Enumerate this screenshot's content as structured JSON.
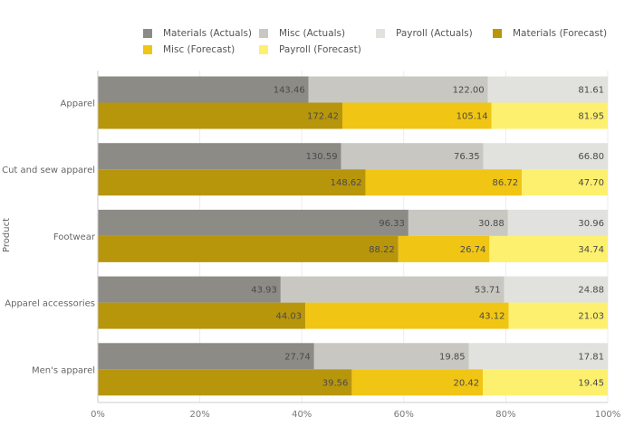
{
  "chart_data": {
    "type": "bar",
    "orientation": "horizontal",
    "stacking": "100%",
    "title": "",
    "xlabel": "",
    "ylabel": "Product",
    "xlim": [
      0,
      100
    ],
    "x_ticks": [
      "0%",
      "20%",
      "40%",
      "60%",
      "80%",
      "100%"
    ],
    "categories": [
      "Apparel",
      "Cut and sew apparel",
      "Footwear",
      "Apparel accessories",
      "Men's apparel"
    ],
    "legend_position": "top",
    "groups": [
      {
        "name": "Actuals",
        "series": [
          {
            "name": "Materials (Actuals)",
            "color": "#8c8b86",
            "values": [
              143.46,
              130.59,
              96.33,
              43.93,
              27.74
            ],
            "labels": [
              "143.46",
              "130.59",
              "96.33",
              "43.93",
              "27.74"
            ]
          },
          {
            "name": "Misc (Actuals)",
            "color": "#c8c7c1",
            "values": [
              122.0,
              76.35,
              30.88,
              53.71,
              19.85
            ],
            "labels": [
              "122.00",
              "76.35",
              "30.88",
              "53.71",
              "19.85"
            ]
          },
          {
            "name": "Payroll (Actuals)",
            "color": "#e1e1dd",
            "values": [
              81.61,
              66.8,
              30.96,
              24.88,
              17.81
            ],
            "labels": [
              "81.61",
              "66.80",
              "30.96",
              "24.88",
              "17.81"
            ]
          }
        ]
      },
      {
        "name": "Forecast",
        "series": [
          {
            "name": "Materials (Forecast)",
            "color": "#b8960c",
            "values": [
              172.42,
              148.62,
              88.22,
              44.03,
              39.56
            ],
            "labels": [
              "172.42",
              "148.62",
              "88.22",
              "44.03",
              "39.56"
            ]
          },
          {
            "name": "Misc (Forecast)",
            "color": "#f0c514",
            "values": [
              105.14,
              86.72,
              26.74,
              43.12,
              20.42
            ],
            "labels": [
              "105.14",
              "86.72",
              "26.74",
              "43.12",
              "20.42"
            ]
          },
          {
            "name": "Payroll (Forecast)",
            "color": "#fdf06e",
            "values": [
              81.95,
              47.7,
              34.74,
              21.03,
              19.45
            ],
            "labels": [
              "81.95",
              "47.70",
              "34.74",
              "21.03",
              "19.45"
            ]
          }
        ]
      }
    ],
    "legend": [
      "Materials (Actuals)",
      "Misc (Actuals)",
      "Payroll (Actuals)",
      "Materials (Forecast)",
      "Misc (Forecast)",
      "Payroll (Forecast)"
    ]
  }
}
